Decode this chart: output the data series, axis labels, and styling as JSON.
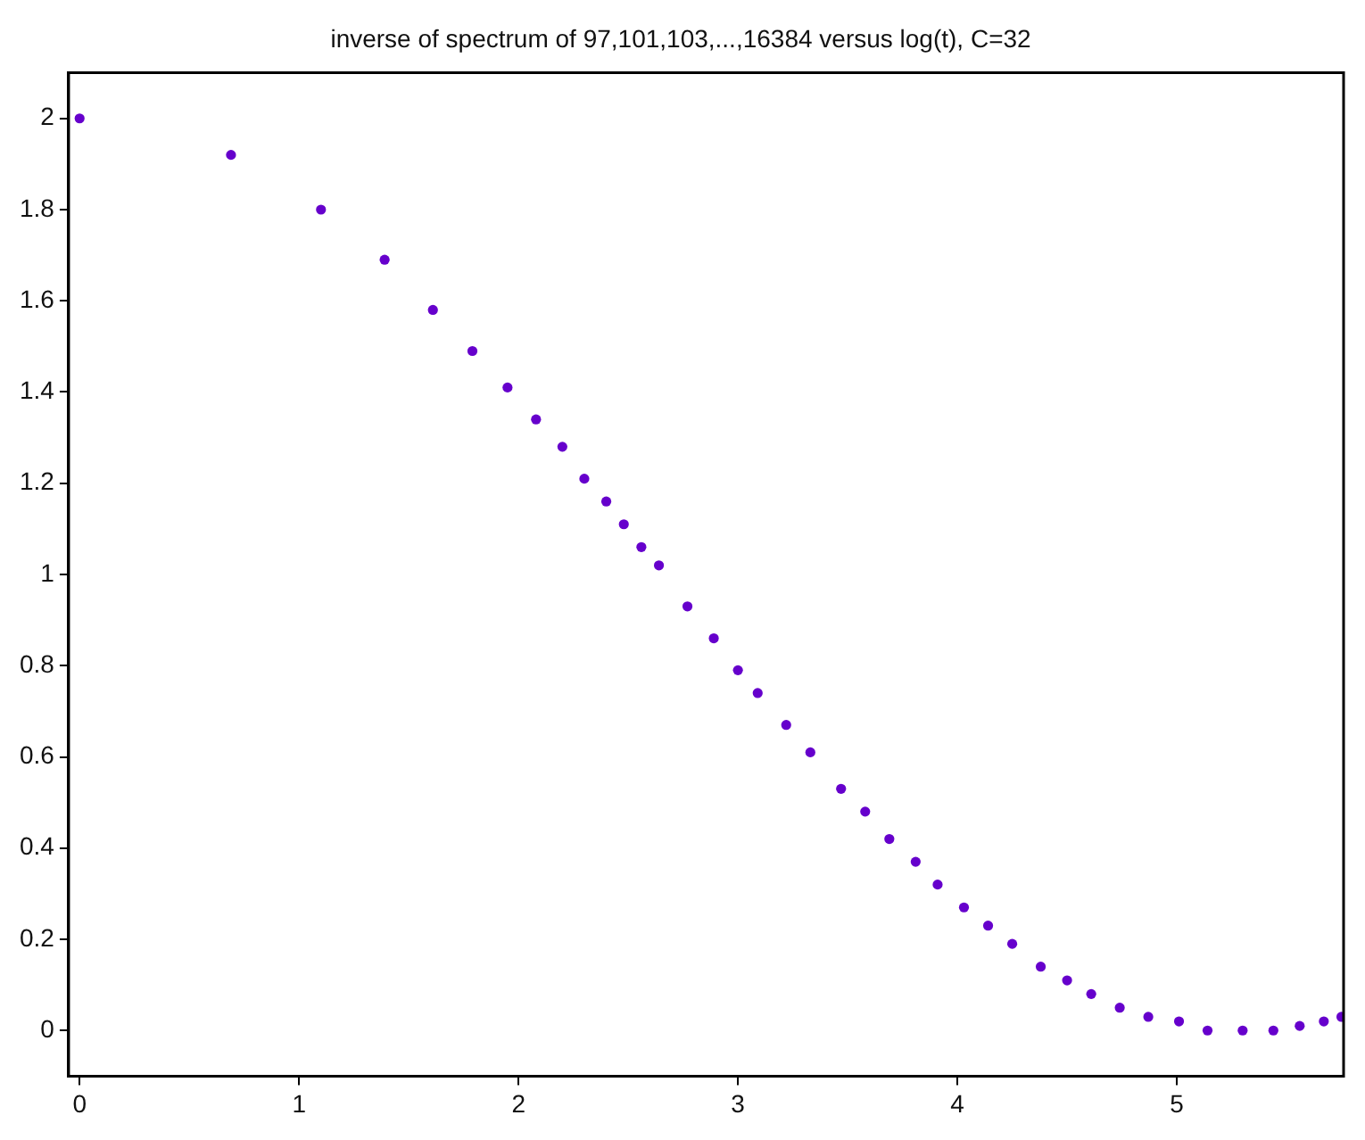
{
  "chart_data": {
    "type": "scatter",
    "title": "inverse of spectrum of 97,101,103,...,16384 versus log(t), C=32",
    "x": [
      0,
      0.69,
      1.1,
      1.39,
      1.61,
      1.79,
      1.95,
      2.08,
      2.2,
      2.3,
      2.4,
      2.48,
      2.56,
      2.64,
      2.77,
      2.89,
      3,
      3.09,
      3.22,
      3.33,
      3.47,
      3.58,
      3.69,
      3.81,
      3.91,
      4.03,
      4.14,
      4.25,
      4.38,
      4.5,
      4.61,
      4.74,
      4.87,
      5.01,
      5.14,
      5.3,
      5.44,
      5.56,
      5.67,
      5.75
    ],
    "values": [
      2,
      1.92,
      1.8,
      1.69,
      1.58,
      1.49,
      1.41,
      1.34,
      1.28,
      1.21,
      1.16,
      1.11,
      1.06,
      1.02,
      0.93,
      0.86,
      0.79,
      0.74,
      0.67,
      0.61,
      0.53,
      0.48,
      0.42,
      0.37,
      0.32,
      0.27,
      0.23,
      0.19,
      0.14,
      0.11,
      0.08,
      0.05,
      0.03,
      0.02,
      0,
      0,
      0,
      0.01,
      0.02,
      0.03
    ],
    "color": "#6600cc",
    "marker": "circle",
    "xlim": [
      -0.05,
      5.76
    ],
    "xticks": [
      0,
      1,
      2,
      3,
      4,
      5
    ],
    "ylim": [
      -0.1,
      2.1
    ],
    "yticks": [
      0,
      0.2,
      0.4,
      0.6,
      0.8,
      1,
      1.2,
      1.4,
      1.6,
      1.8,
      2
    ],
    "grid": false,
    "legend": false
  }
}
